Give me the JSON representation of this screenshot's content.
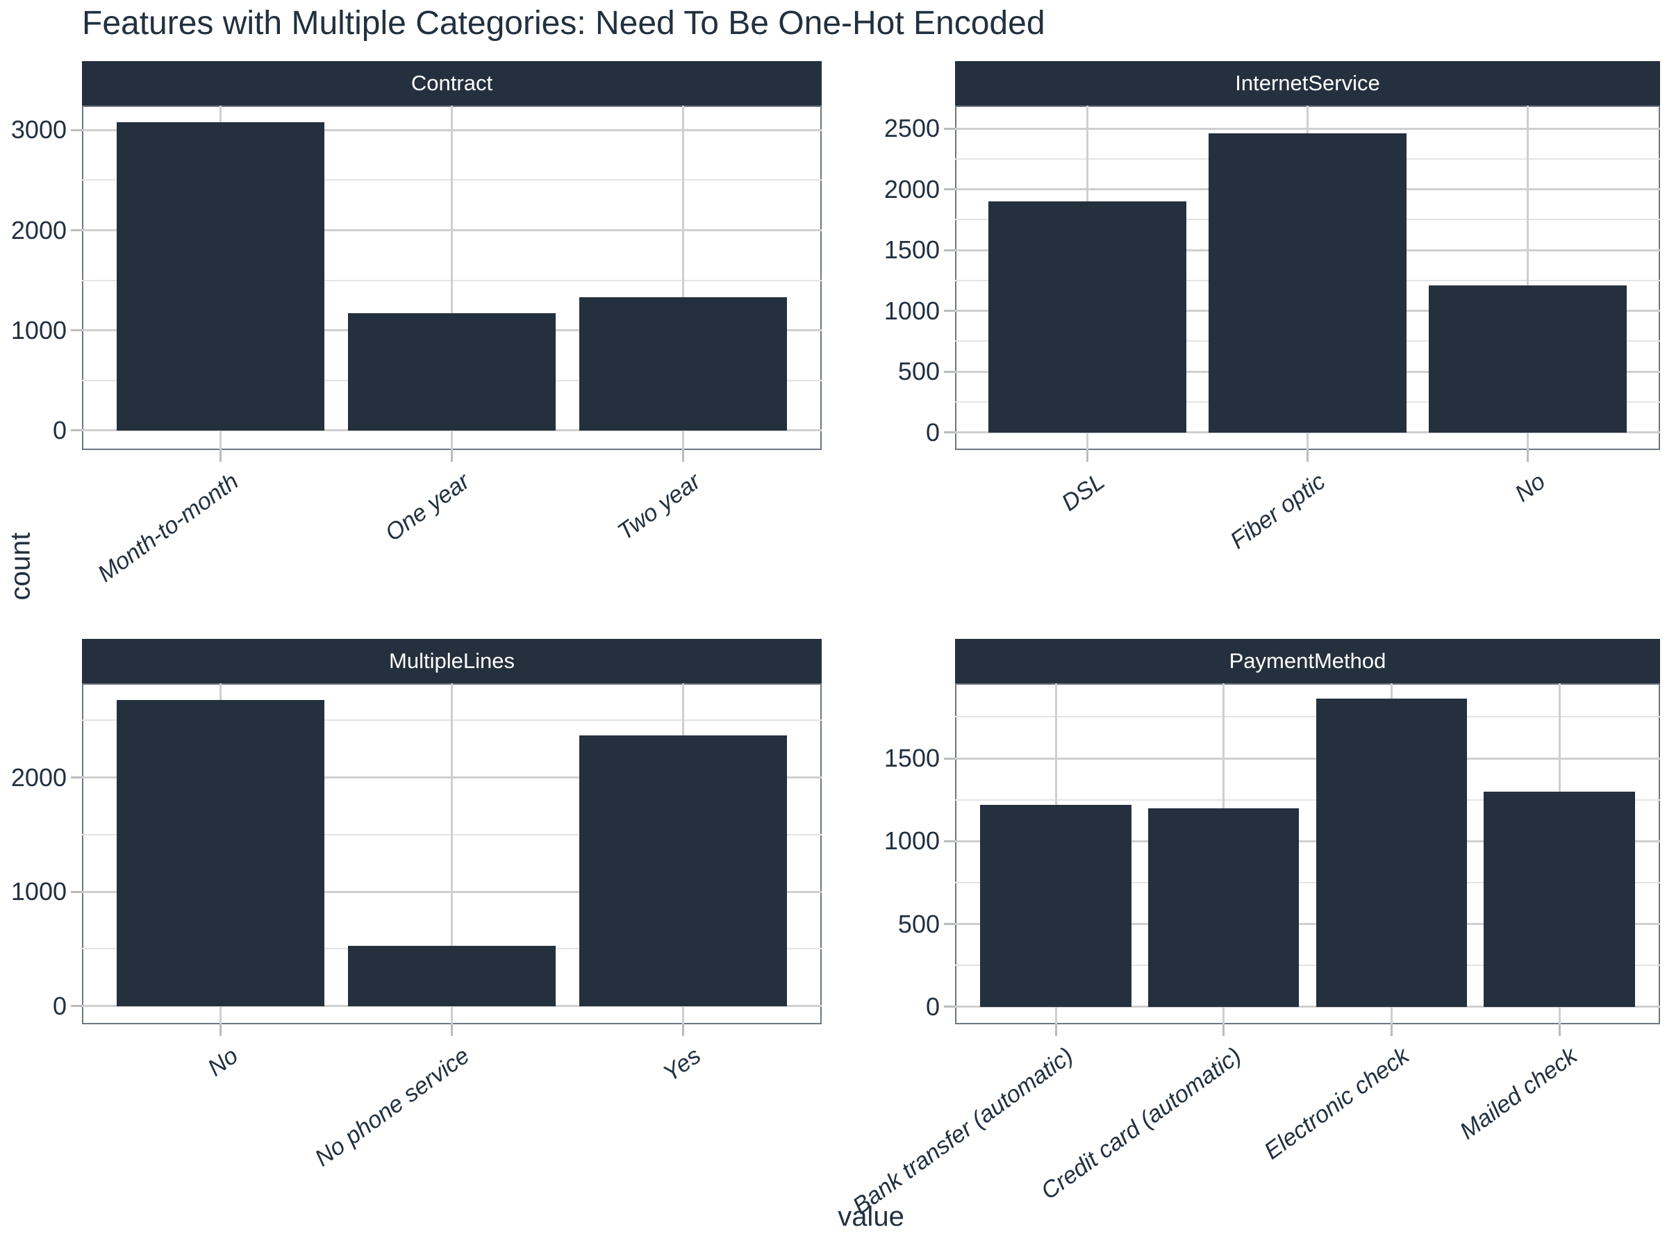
{
  "title": "Features with Multiple Categories: Need To Be One-Hot Encoded",
  "axes": {
    "x_label": "value",
    "y_label": "count"
  },
  "colors": {
    "bar": "#25303e",
    "strip_background": "#25303e",
    "strip_text": "#ffffff",
    "axis_text": "#22303f",
    "grid_major": "#cfcfcf",
    "grid_minor": "#e4e4e4",
    "panel_border": "#6e7681",
    "tick_mark": "#b9bcbf",
    "background": "#ffffff"
  },
  "chart_data": [
    {
      "type": "bar",
      "title": "Contract",
      "categories": [
        "Month-to-month",
        "One year",
        "Two year"
      ],
      "values": [
        3080,
        1170,
        1330
      ],
      "yticks_major": [
        0,
        1000,
        2000,
        3000
      ],
      "yticks_minor": [
        500,
        1500,
        2500
      ],
      "ylim": [
        -195,
        3245
      ],
      "grid": "on",
      "xlabel": "value",
      "ylabel": "count"
    },
    {
      "type": "bar",
      "title": "InternetService",
      "categories": [
        "DSL",
        "Fiber optic",
        "No"
      ],
      "values": [
        1900,
        2460,
        1210
      ],
      "yticks_major": [
        0,
        500,
        1000,
        1500,
        2000,
        2500
      ],
      "yticks_minor": [
        250,
        750,
        1250,
        1750,
        2250
      ],
      "ylim": [
        -145,
        2690
      ],
      "grid": "on",
      "xlabel": "value",
      "ylabel": "count"
    },
    {
      "type": "bar",
      "title": "MultipleLines",
      "categories": [
        "No",
        "No phone service",
        "Yes"
      ],
      "values": [
        2680,
        530,
        2370
      ],
      "yticks_major": [
        0,
        1000,
        2000
      ],
      "yticks_minor": [
        500,
        1500,
        2500
      ],
      "ylim": [
        -160,
        2825
      ],
      "grid": "on",
      "xlabel": "value",
      "ylabel": "count"
    },
    {
      "type": "bar",
      "title": "PaymentMethod",
      "categories": [
        "Bank transfer (automatic)",
        "Credit card (automatic)",
        "Electronic check",
        "Mailed check"
      ],
      "values": [
        1220,
        1200,
        1860,
        1300
      ],
      "yticks_major": [
        0,
        500,
        1000,
        1500
      ],
      "yticks_minor": [
        250,
        750,
        1250,
        1750
      ],
      "ylim": [
        -105,
        1953
      ],
      "grid": "on",
      "xlabel": "value",
      "ylabel": "count"
    }
  ]
}
